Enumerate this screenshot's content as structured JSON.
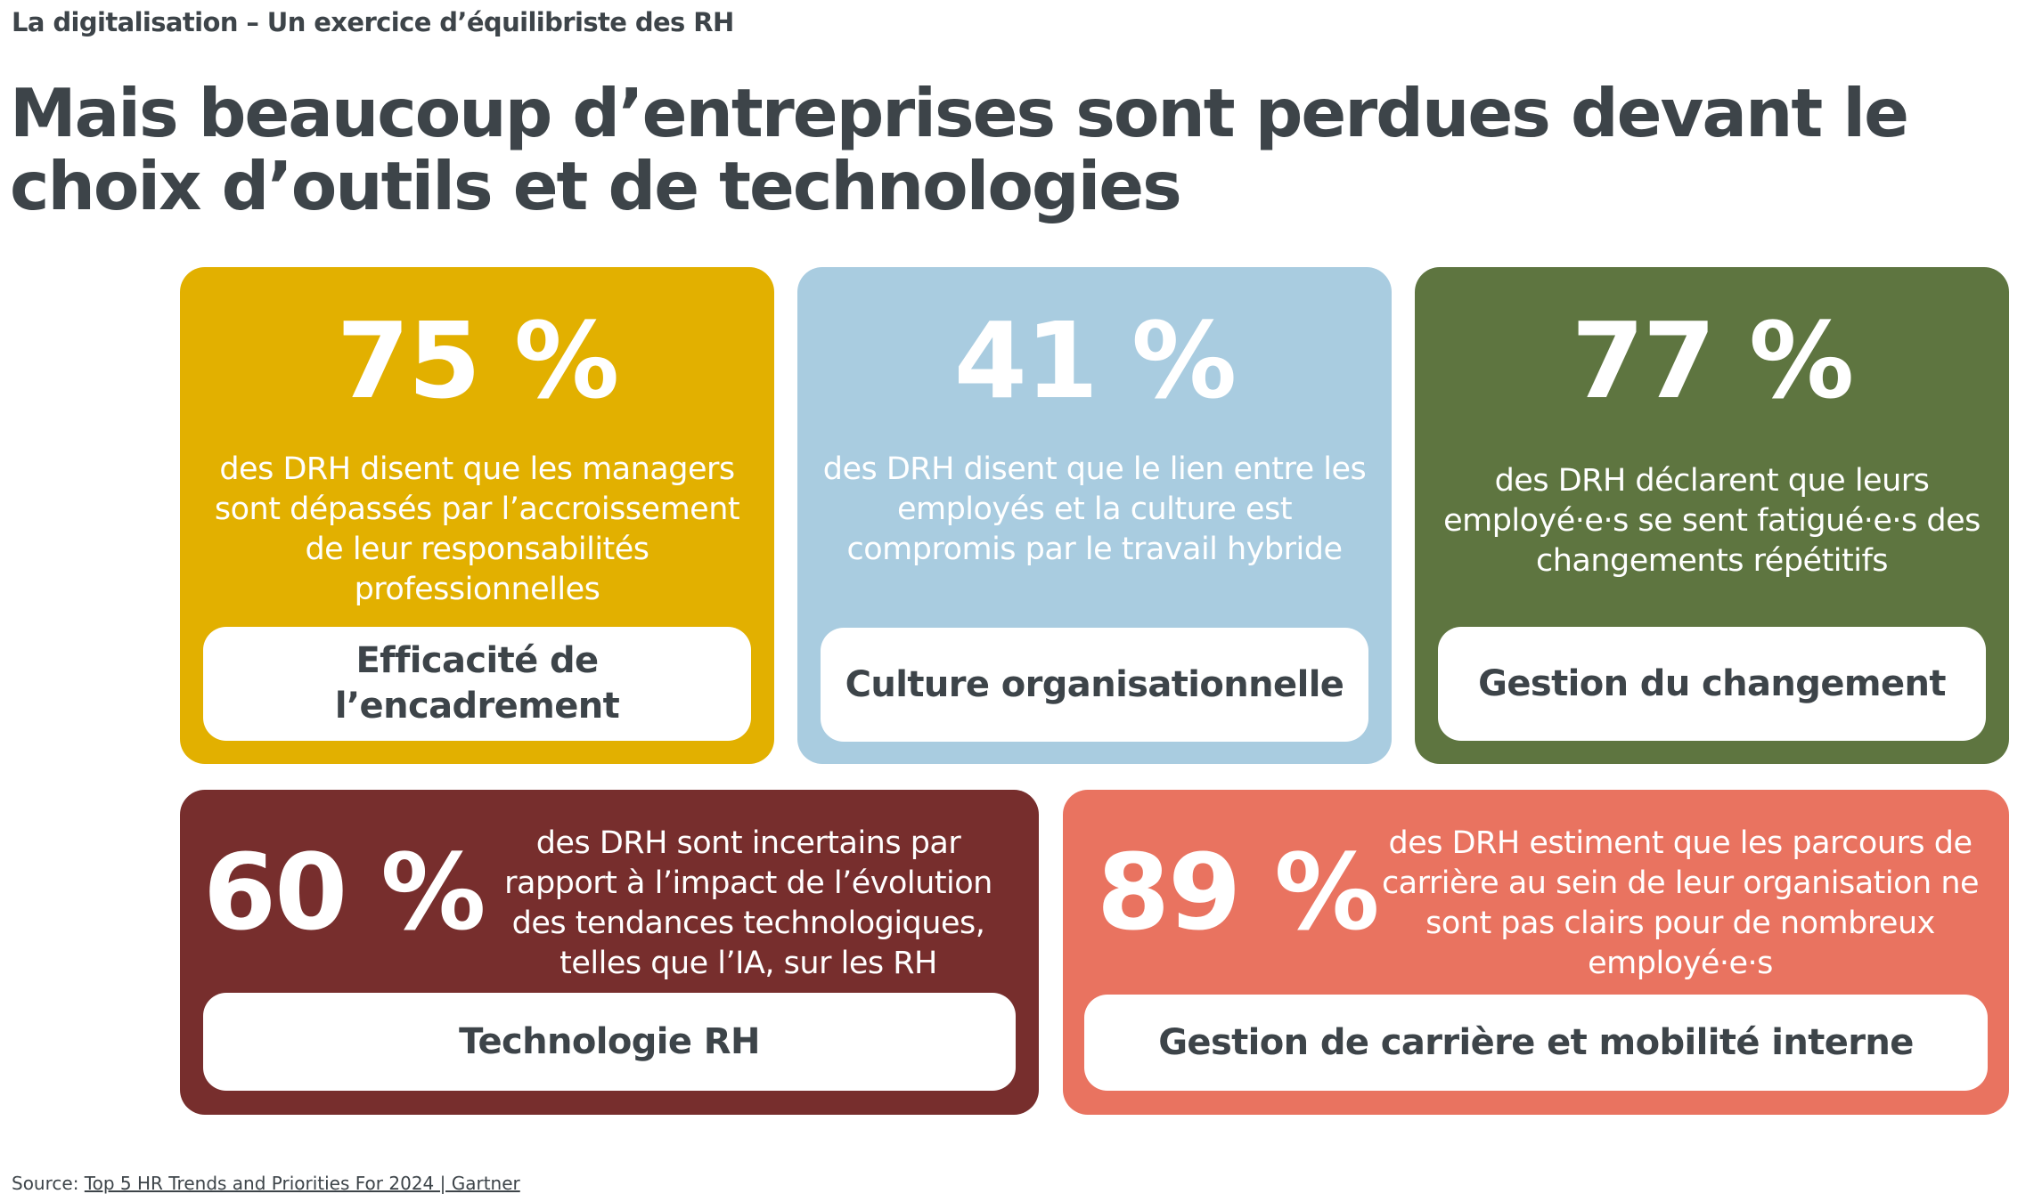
{
  "header": {
    "kicker": "La digitalisation – Un exercice d’équilibriste des RH",
    "title": "Mais beaucoup d’entreprises sont perdues devant le choix d’outils et de technologies"
  },
  "colors": {
    "text": "#3d4449",
    "yellow": "#e2b000",
    "light_blue": "#a9cce0",
    "green": "#5e7540",
    "maroon": "#772e2d",
    "coral": "#e97360"
  },
  "cards": [
    {
      "stat": "75 %",
      "description": "des DRH disent que les managers sont dépassés par l’accroissement de leur responsabilités professionnelles",
      "label": "Efficacité de l’encadrement"
    },
    {
      "stat": "41 %",
      "description": "des DRH disent que le lien entre les employés et la culture est compromis par le travail hybride",
      "label": "Culture organisationnelle"
    },
    {
      "stat": "77 %",
      "description": "des DRH déclarent que leurs employé·e·s se sent fatigué·e·s des changements répétitifs",
      "label": "Gestion du changement"
    },
    {
      "stat": "60 %",
      "description": "des DRH sont incertains par rapport à l’impact de l’évolution des tendances technologiques, telles que l’IA, sur les RH",
      "label": "Technologie RH"
    },
    {
      "stat": "89 %",
      "description": "des DRH estiment que les parcours de carrière au sein de leur organisation ne sont pas clairs pour de nombreux employé·e·s",
      "label": "Gestion de carrière et mobilité interne"
    }
  ],
  "footer": {
    "source_prefix": "Source: ",
    "source_link": "Top 5 HR Trends and Priorities For 2024 | Gartner"
  }
}
